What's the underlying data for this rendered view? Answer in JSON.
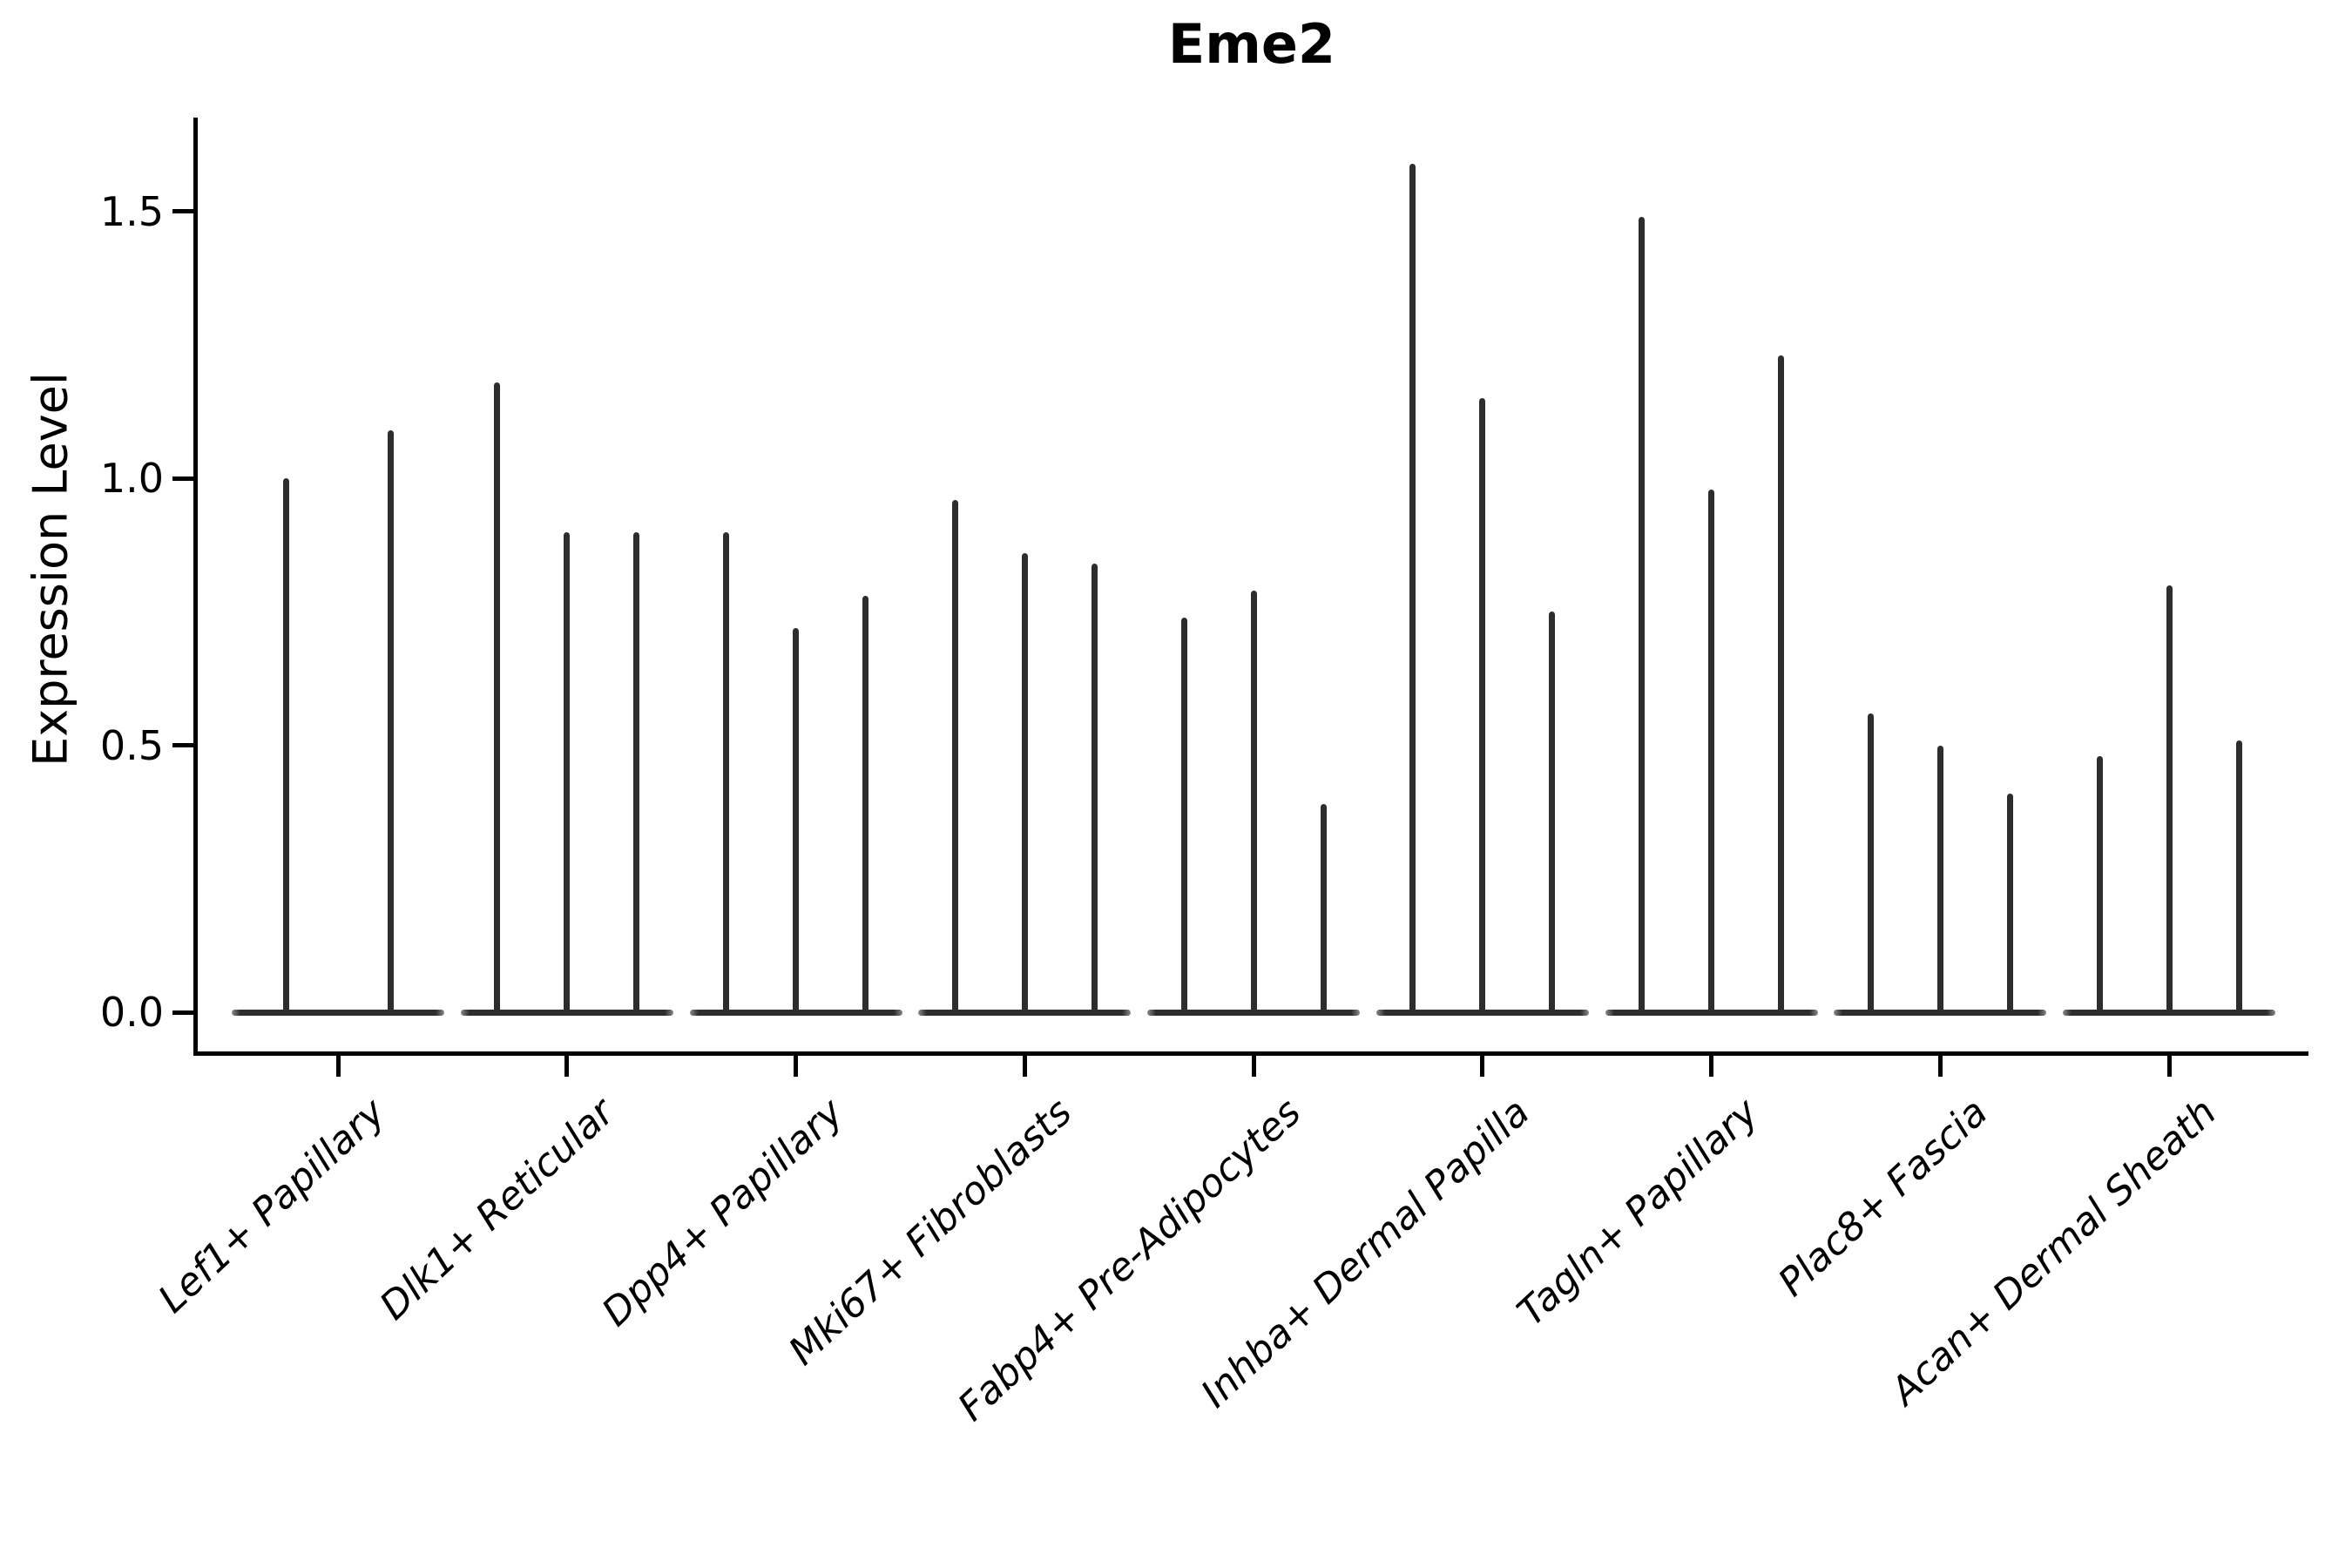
{
  "chart_data": {
    "type": "violin",
    "title": "Eme2",
    "ylabel": "Expression Level",
    "xlabel": "",
    "ylim": [
      0.0,
      1.67
    ],
    "yticks": [
      0.0,
      0.5,
      1.0,
      1.5
    ],
    "ytick_labels": [
      "0.0",
      "0.5",
      "1.0",
      "1.5"
    ],
    "grid": false,
    "legend": "none",
    "style": {
      "spike_color": "#2d2d2d",
      "axis_color": "#000000",
      "background": "#ffffff"
    },
    "note": "Each category shows 2-3 collapsed (near-zero-width) violins drawn as vertical spikes over a flat baseline at 0; spike_heights are the violin maxima in expression-level units.",
    "categories": [
      "Lef1+ Papillary",
      "Dlk1+ Reticular",
      "Dpp4+ Papillary",
      "Mki67+ Fibroblasts",
      "Fabp4+ Pre-Adipocytes",
      "Inhba+ Dermal Papilla",
      "Tagln+ Papillary",
      "Plac8+ Fascia",
      "Acan+ Dermal Sheath"
    ],
    "groups": [
      {
        "category": "Lef1+ Papillary",
        "spike_heights": [
          1.0,
          1.09
        ]
      },
      {
        "category": "Dlk1+ Reticular",
        "spike_heights": [
          1.18,
          0.9,
          0.9
        ]
      },
      {
        "category": "Dpp4+ Papillary",
        "spike_heights": [
          0.9,
          0.72,
          0.78
        ]
      },
      {
        "category": "Mki67+ Fibroblasts",
        "spike_heights": [
          0.96,
          0.86,
          0.84
        ]
      },
      {
        "category": "Fabp4+ Pre-Adipocytes",
        "spike_heights": [
          0.74,
          0.79,
          0.39
        ]
      },
      {
        "category": "Inhba+ Dermal Papilla",
        "spike_heights": [
          1.59,
          1.15,
          0.75
        ]
      },
      {
        "category": "Tagln+ Papillary",
        "spike_heights": [
          1.49,
          0.98,
          1.23
        ]
      },
      {
        "category": "Plac8+ Fascia",
        "spike_heights": [
          0.56,
          0.5,
          0.41
        ]
      },
      {
        "category": "Acan+ Dermal Sheath",
        "spike_heights": [
          0.48,
          0.8,
          0.51
        ]
      }
    ]
  }
}
